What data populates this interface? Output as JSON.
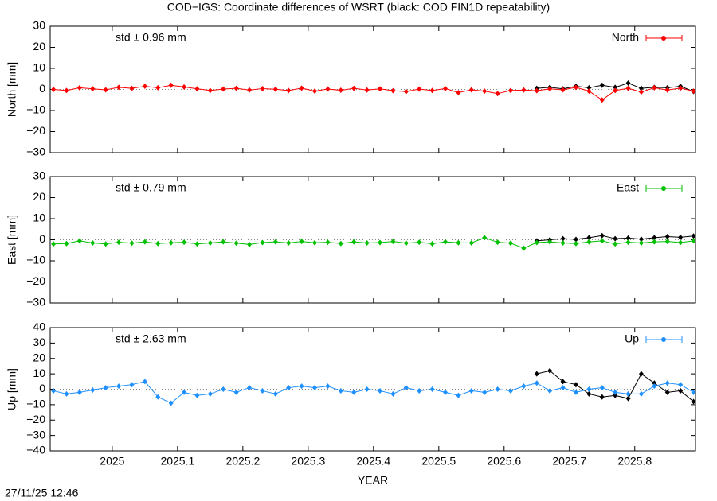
{
  "title": "COD−IGS: Coordinate differences of WSRT (black: COD FIN1D repeatability)",
  "timestamp": "27/11/25 12:46",
  "chart_data": [
    {
      "type": "line",
      "ylabel": "North [mm]",
      "annotation": "std ± 0.96 mm",
      "annotation_color": "#ff0000",
      "xlim": [
        2024.905,
        2025.893
      ],
      "xticks": [
        2025,
        2025.1,
        2025.2,
        2025.3,
        2025.4,
        2025.5,
        2025.6,
        2025.7,
        2025.8
      ],
      "ylim": [
        -30,
        30
      ],
      "yticks": [
        {
          "value": -30,
          "label": "−30"
        },
        {
          "value": -20,
          "label": "−20"
        },
        {
          "value": -10,
          "label": "−10"
        },
        0,
        10,
        20,
        30
      ],
      "series": [
        {
          "color": "#000000",
          "x": [
            2025.65,
            2025.67,
            2025.69,
            2025.71,
            2025.73,
            2025.75,
            2025.77,
            2025.79,
            2025.81,
            2025.83,
            2025.85,
            2025.87,
            2025.89
          ],
          "values": [
            0.5,
            1.0,
            0.3,
            1.5,
            0.8,
            2.0,
            1.0,
            3.0,
            0.5,
            1.0,
            0.8,
            1.5,
            -1.0
          ]
        },
        {
          "name": "North",
          "color": "#ff0000",
          "x": [
            2024.91,
            2024.93,
            2024.95,
            2024.97,
            2024.99,
            2025.01,
            2025.03,
            2025.05,
            2025.07,
            2025.09,
            2025.11,
            2025.13,
            2025.15,
            2025.17,
            2025.19,
            2025.21,
            2025.23,
            2025.25,
            2025.27,
            2025.29,
            2025.31,
            2025.33,
            2025.35,
            2025.37,
            2025.39,
            2025.41,
            2025.43,
            2025.45,
            2025.47,
            2025.49,
            2025.51,
            2025.53,
            2025.55,
            2025.57,
            2025.59,
            2025.61,
            2025.63,
            2025.65,
            2025.67,
            2025.69,
            2025.71,
            2025.73,
            2025.75,
            2025.77,
            2025.79,
            2025.81,
            2025.83,
            2025.85,
            2025.87,
            2025.89
          ],
          "values": [
            0,
            -0.5,
            0.8,
            0.3,
            -0.2,
            1.0,
            0.5,
            1.5,
            0.8,
            2.0,
            1.2,
            0.3,
            -0.5,
            0.2,
            0.5,
            -0.3,
            0.4,
            0.1,
            -0.5,
            0.6,
            -0.8,
            0.2,
            -0.4,
            0.5,
            -0.3,
            0.3,
            -0.6,
            -1.0,
            0.2,
            -0.5,
            0.4,
            -1.5,
            -0.2,
            -0.8,
            -2.0,
            -0.5,
            -0.3,
            -0.6,
            0.3,
            -0.2,
            1.0,
            -0.8,
            -5.0,
            -0.5,
            0.5,
            -1.2,
            0.8,
            -0.3,
            0.6,
            -0.8
          ]
        }
      ]
    },
    {
      "type": "line",
      "ylabel": "East [mm]",
      "annotation": "std ± 0.79 mm",
      "annotation_color": "#00c000",
      "xlim": [
        2024.905,
        2025.893
      ],
      "xticks": [
        2025,
        2025.1,
        2025.2,
        2025.3,
        2025.4,
        2025.5,
        2025.6,
        2025.7,
        2025.8
      ],
      "ylim": [
        -30,
        30
      ],
      "yticks": [
        {
          "value": -30,
          "label": "−30"
        },
        {
          "value": -20,
          "label": "−20"
        },
        {
          "value": -10,
          "label": "−10"
        },
        0,
        10,
        20,
        30
      ],
      "series": [
        {
          "color": "#000000",
          "x": [
            2025.65,
            2025.67,
            2025.69,
            2025.71,
            2025.73,
            2025.75,
            2025.77,
            2025.79,
            2025.81,
            2025.83,
            2025.85,
            2025.87,
            2025.89
          ],
          "values": [
            -0.5,
            0,
            0.5,
            0.2,
            1.0,
            2.0,
            0.5,
            0.8,
            0.3,
            1.0,
            1.5,
            1.2,
            1.8
          ]
        },
        {
          "name": "East",
          "color": "#00c000",
          "x": [
            2024.91,
            2024.93,
            2024.95,
            2024.97,
            2024.99,
            2025.01,
            2025.03,
            2025.05,
            2025.07,
            2025.09,
            2025.11,
            2025.13,
            2025.15,
            2025.17,
            2025.19,
            2025.21,
            2025.23,
            2025.25,
            2025.27,
            2025.29,
            2025.31,
            2025.33,
            2025.35,
            2025.37,
            2025.39,
            2025.41,
            2025.43,
            2025.45,
            2025.47,
            2025.49,
            2025.51,
            2025.53,
            2025.55,
            2025.57,
            2025.59,
            2025.61,
            2025.63,
            2025.65,
            2025.67,
            2025.69,
            2025.71,
            2025.73,
            2025.75,
            2025.77,
            2025.79,
            2025.81,
            2025.83,
            2025.85,
            2025.87,
            2025.89
          ],
          "values": [
            -2,
            -1.8,
            -0.5,
            -1.5,
            -2,
            -1.2,
            -1.6,
            -1.0,
            -1.8,
            -1.4,
            -1.2,
            -2.0,
            -1.5,
            -1.0,
            -1.6,
            -2.2,
            -1.3,
            -1.0,
            -1.5,
            -0.8,
            -1.4,
            -1.2,
            -1.8,
            -1.0,
            -1.5,
            -1.3,
            -0.8,
            -1.6,
            -1.2,
            -1.9,
            -1.0,
            -1.4,
            -1.5,
            1.0,
            -1.2,
            -1.6,
            -4.0,
            -1.3,
            -1.0,
            -1.5,
            -1.8,
            -1.0,
            -0.5,
            -2.0,
            -1.2,
            -1.5,
            -1.0,
            -0.8,
            -1.3,
            -0.5
          ]
        }
      ]
    },
    {
      "type": "line",
      "ylabel": "Up [mm]",
      "annotation": "std ± 2.63 mm",
      "annotation_color": "#1e90ff",
      "xlabel": "YEAR",
      "xlim": [
        2024.905,
        2025.893
      ],
      "xticks": [
        2025,
        2025.1,
        2025.2,
        2025.3,
        2025.4,
        2025.5,
        2025.6,
        2025.7,
        2025.8
      ],
      "ylim": [
        -40,
        40
      ],
      "yticks": [
        {
          "value": -40,
          "label": "−40"
        },
        {
          "value": -30,
          "label": "−30"
        },
        {
          "value": -20,
          "label": "−20"
        },
        {
          "value": -10,
          "label": "−10"
        },
        0,
        10,
        20,
        30,
        40
      ],
      "series": [
        {
          "color": "#000000",
          "x": [
            2025.65,
            2025.67,
            2025.69,
            2025.71,
            2025.73,
            2025.75,
            2025.77,
            2025.79,
            2025.81,
            2025.83,
            2025.85,
            2025.87,
            2025.89
          ],
          "values": [
            10,
            12,
            5,
            3,
            -3,
            -5,
            -4,
            -6,
            10,
            4,
            -2,
            -1,
            -8
          ]
        },
        {
          "name": "Up",
          "color": "#1e90ff",
          "x": [
            2024.91,
            2024.93,
            2024.95,
            2024.97,
            2024.99,
            2025.01,
            2025.03,
            2025.05,
            2025.07,
            2025.09,
            2025.11,
            2025.13,
            2025.15,
            2025.17,
            2025.19,
            2025.21,
            2025.23,
            2025.25,
            2025.27,
            2025.29,
            2025.31,
            2025.33,
            2025.35,
            2025.37,
            2025.39,
            2025.41,
            2025.43,
            2025.45,
            2025.47,
            2025.49,
            2025.51,
            2025.53,
            2025.55,
            2025.57,
            2025.59,
            2025.61,
            2025.63,
            2025.65,
            2025.67,
            2025.69,
            2025.71,
            2025.73,
            2025.75,
            2025.77,
            2025.79,
            2025.81,
            2025.83,
            2025.85,
            2025.87,
            2025.89
          ],
          "values": [
            -1,
            -3,
            -2,
            -0.5,
            1,
            2,
            3,
            5,
            -5,
            -9,
            -2,
            -4,
            -3,
            0,
            -2,
            1,
            -1,
            -3,
            1,
            2,
            1,
            2,
            -1,
            -2,
            0,
            -1,
            -3,
            1,
            -1,
            0,
            -2,
            -4,
            -1,
            -2,
            0,
            -1,
            2,
            4,
            -1,
            1,
            -2,
            0,
            1,
            -2,
            -3,
            -3,
            2,
            4,
            3,
            -2
          ]
        }
      ]
    }
  ]
}
